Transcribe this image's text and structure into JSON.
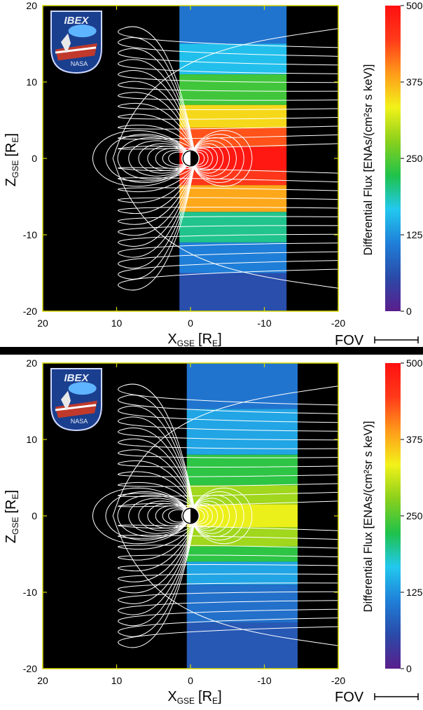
{
  "colors": {
    "frame": "#d8d800",
    "background": "#000000",
    "field_lines": "#ffffff",
    "divider": "#000000"
  },
  "colorbar_stops": [
    "#5a1e8c",
    "#2a4aa8",
    "#1f7fd8",
    "#22c8ef",
    "#1fc24a",
    "#8ad01c",
    "#f2f21a",
    "#ff9a1a",
    "#ff3a1a",
    "#ff1010"
  ],
  "logo": {
    "text_ibex": "IBEX",
    "text_nasa": "NASA"
  },
  "chart_data": [
    {
      "type": "heatmap",
      "xlabel_main": "X",
      "xlabel_sub": "GSE",
      "xlabel_unit": "[R",
      "xlabel_unit_sub": "E",
      "xlabel_unit_end": "]",
      "ylabel_main": "Z",
      "ylabel_sub": "GSE",
      "ylabel_unit": "[R",
      "ylabel_unit_sub": "E",
      "ylabel_unit_end": "]",
      "xlim": [
        20,
        -20
      ],
      "ylim": [
        -20,
        20
      ],
      "x_ticks": [
        20,
        10,
        0,
        -10,
        -20
      ],
      "x_tick_labels": [
        "20",
        "10",
        "0",
        "-10",
        "-20"
      ],
      "y_ticks": [
        20,
        10,
        0,
        -10,
        -20
      ],
      "y_tick_labels": [
        "20",
        "10",
        "0",
        "-10",
        "-20"
      ],
      "colorbar": {
        "label": "Differential Flux [ENAs/(cm²sr s keV)]",
        "range": [
          0,
          500
        ],
        "ticks": [
          500,
          375,
          250,
          125,
          0
        ],
        "tick_labels": [
          "500",
          "375",
          "250",
          "125",
          "0"
        ]
      },
      "fov_label": "FOV",
      "data_x_extent": [
        1.5,
        -13
      ],
      "image_bands": [
        {
          "z": [
            15,
            20
          ],
          "flux": 100
        },
        {
          "z": [
            11,
            15
          ],
          "flux": 160
        },
        {
          "z": [
            7,
            11
          ],
          "flux": 240
        },
        {
          "z": [
            4,
            7
          ],
          "flux": 350
        },
        {
          "z": [
            1.5,
            4
          ],
          "flux": 430
        },
        {
          "z": [
            -1.5,
            1.5
          ],
          "flux": 490
        },
        {
          "z": [
            -3.5,
            -1.5
          ],
          "flux": 450
        },
        {
          "z": [
            -7,
            -3.5
          ],
          "flux": 380
        },
        {
          "z": [
            -11,
            -7
          ],
          "flux": 200
        },
        {
          "z": [
            -15,
            -11
          ],
          "flux": 110
        },
        {
          "z": [
            -20,
            -15
          ],
          "flux": 60
        }
      ]
    },
    {
      "type": "heatmap",
      "xlabel_main": "X",
      "xlabel_sub": "GSE",
      "xlabel_unit": "[R",
      "xlabel_unit_sub": "E",
      "xlabel_unit_end": "]",
      "ylabel_main": "Z",
      "ylabel_sub": "GSE",
      "ylabel_unit": "[R",
      "ylabel_unit_sub": "E",
      "ylabel_unit_end": "]",
      "xlim": [
        20,
        -20
      ],
      "ylim": [
        -20,
        20
      ],
      "x_ticks": [
        20,
        10,
        0,
        -10,
        -20
      ],
      "x_tick_labels": [
        "20",
        "10",
        "0",
        "-10",
        "-20"
      ],
      "y_ticks": [
        20,
        10,
        0,
        -10,
        -20
      ],
      "y_tick_labels": [
        "20",
        "10",
        "0",
        "-10",
        "-20"
      ],
      "colorbar": {
        "label": "Differential Flux [ENAs/(cm²sr s keV)]",
        "range": [
          0,
          500
        ],
        "ticks": [
          500,
          375,
          250,
          125,
          0
        ],
        "tick_labels": [
          "500",
          "375",
          "250",
          "125",
          "0"
        ]
      },
      "fov_label": "FOV",
      "data_x_extent": [
        0.5,
        -14.5
      ],
      "image_bands": [
        {
          "z": [
            14,
            20
          ],
          "flux": 100
        },
        {
          "z": [
            8,
            14
          ],
          "flux": 140
        },
        {
          "z": [
            4,
            8
          ],
          "flux": 230
        },
        {
          "z": [
            1.5,
            4
          ],
          "flux": 290
        },
        {
          "z": [
            -1.5,
            1.5
          ],
          "flux": 330
        },
        {
          "z": [
            -4,
            -1.5
          ],
          "flux": 290
        },
        {
          "z": [
            -6,
            -4
          ],
          "flux": 230
        },
        {
          "z": [
            -9,
            -6
          ],
          "flux": 140
        },
        {
          "z": [
            -14,
            -9
          ],
          "flux": 95
        },
        {
          "z": [
            -20,
            -14
          ],
          "flux": 70
        }
      ]
    }
  ]
}
